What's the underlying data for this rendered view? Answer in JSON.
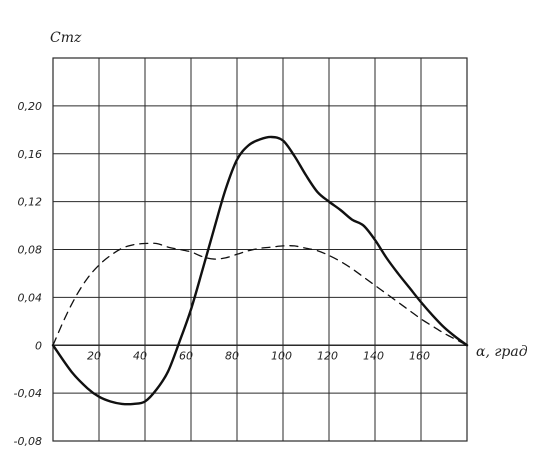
{
  "chart_data": {
    "type": "line",
    "title": "",
    "xlabel": "α, град",
    "ylabel": "Cmz",
    "xlim": [
      0,
      180
    ],
    "ylim": [
      -0.08,
      0.24
    ],
    "grid": true,
    "x_ticks": [
      20,
      40,
      60,
      80,
      100,
      120,
      140,
      160
    ],
    "x_tick_labels": [
      "20",
      "40",
      "60",
      "80",
      "100",
      "120",
      "140",
      "160"
    ],
    "y_ticks": [
      0.2,
      0.16,
      0.12,
      0.08,
      0.04,
      0,
      -0.04,
      -0.08
    ],
    "y_tick_labels": [
      "0,20",
      "0,16",
      "0,12",
      "0,08",
      "0,04",
      "0",
      "-0,04",
      "-0,08"
    ],
    "colors": {
      "grid": "#2a2a2a",
      "ink": "#111111"
    },
    "series": [
      {
        "style": "solid",
        "x": [
          0,
          8,
          15,
          20,
          25,
          30,
          35,
          40,
          45,
          50,
          55,
          60,
          65,
          70,
          75,
          80,
          85,
          90,
          95,
          100,
          105,
          110,
          115,
          120,
          125,
          130,
          135,
          140,
          145,
          150,
          155,
          160,
          165,
          170,
          175,
          180
        ],
        "y": [
          0,
          -0.022,
          -0.036,
          -0.043,
          -0.047,
          -0.049,
          -0.049,
          -0.047,
          -0.037,
          -0.022,
          0.003,
          0.03,
          0.063,
          0.097,
          0.13,
          0.155,
          0.167,
          0.172,
          0.174,
          0.171,
          0.158,
          0.142,
          0.128,
          0.12,
          0.113,
          0.105,
          0.1,
          0.088,
          0.073,
          0.06,
          0.048,
          0.036,
          0.025,
          0.015,
          0.007,
          0
        ]
      },
      {
        "style": "dashed",
        "x": [
          0,
          5,
          10,
          15,
          20,
          25,
          30,
          35,
          40,
          45,
          50,
          55,
          60,
          65,
          70,
          75,
          80,
          85,
          90,
          95,
          100,
          105,
          110,
          115,
          120,
          125,
          130,
          135,
          140,
          145,
          150,
          155,
          160,
          165,
          170,
          175,
          180
        ],
        "y": [
          0,
          0.022,
          0.041,
          0.056,
          0.067,
          0.075,
          0.081,
          0.084,
          0.085,
          0.085,
          0.082,
          0.08,
          0.078,
          0.074,
          0.072,
          0.073,
          0.076,
          0.079,
          0.081,
          0.082,
          0.083,
          0.083,
          0.081,
          0.079,
          0.075,
          0.07,
          0.064,
          0.057,
          0.05,
          0.043,
          0.036,
          0.029,
          0.022,
          0.016,
          0.01,
          0.005,
          0
        ]
      }
    ]
  }
}
